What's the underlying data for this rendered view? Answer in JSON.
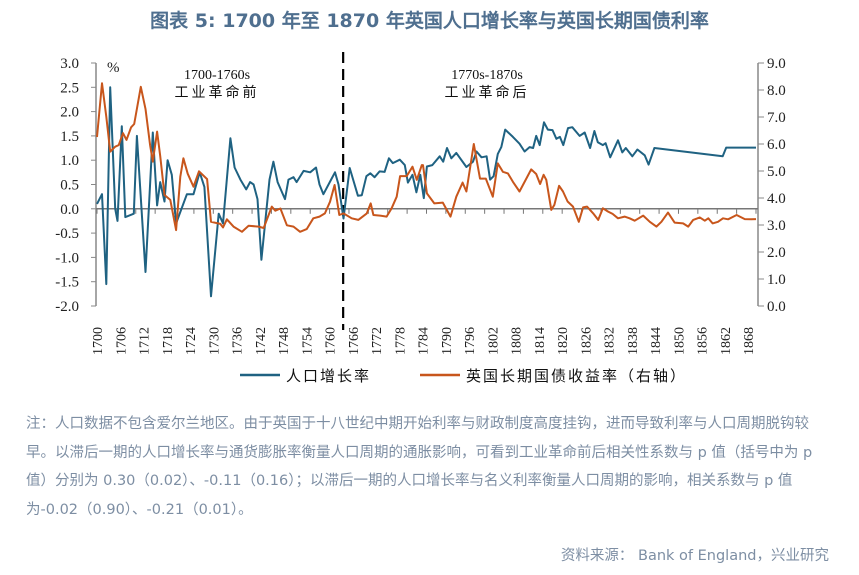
{
  "title": "图表 5:  1700 年至 1870 年英国人口增长率与英国长期国债利率",
  "chart_data": {
    "type": "line",
    "title": "图表 5:  1700 年至 1870 年英国人口增长率与英国长期国债利率",
    "left_unit": "%",
    "xlim": [
      1700,
      1870
    ],
    "ylim_left": [
      -2.0,
      3.0
    ],
    "ylim_right": [
      0.0,
      9.0
    ],
    "left_ticks": [
      "3.0",
      "2.5",
      "2.0",
      "1.5",
      "1.0",
      "0.5",
      "0.0",
      "-0.5",
      "-1.0",
      "-1.5",
      "-2.0"
    ],
    "right_ticks": [
      "9.0",
      "8.0",
      "7.0",
      "6.0",
      "5.0",
      "4.0",
      "3.0",
      "2.0",
      "1.0",
      "0.0"
    ],
    "x_ticks": [
      "1700",
      "1706",
      "1712",
      "1718",
      "1724",
      "1730",
      "1736",
      "1742",
      "1748",
      "1754",
      "1760",
      "1766",
      "1772",
      "1778",
      "1784",
      "1790",
      "1796",
      "1802",
      "1808",
      "1814",
      "1820",
      "1826",
      "1832",
      "1838",
      "1844",
      "1850",
      "1856",
      "1862",
      "1868"
    ],
    "grid": false,
    "legend_position": "bottom",
    "divider_year": 1763.5,
    "annotations": [
      {
        "line1": "1700-1760s",
        "line2": "工业革命前"
      },
      {
        "line1": "1770s-1870s",
        "line2": "工业革命后"
      }
    ],
    "series": [
      {
        "name": "人口增长率",
        "axis": "left",
        "color": "#1f6282",
        "points": [
          [
            1700,
            0.1
          ],
          [
            1701.3,
            0.3
          ],
          [
            1702.4,
            -1.55
          ],
          [
            1703.4,
            2.5
          ],
          [
            1704.7,
            0.0
          ],
          [
            1705.3,
            -0.25
          ],
          [
            1706.4,
            1.7
          ],
          [
            1707.3,
            -0.17
          ],
          [
            1709.5,
            -0.1
          ],
          [
            1710.3,
            1.5
          ],
          [
            1712.5,
            -1.3
          ],
          [
            1714.4,
            1.57
          ],
          [
            1715.5,
            0.07
          ],
          [
            1716.3,
            0.55
          ],
          [
            1717.4,
            0.15
          ],
          [
            1718.2,
            1.0
          ],
          [
            1719.3,
            0.7
          ],
          [
            1720.4,
            -0.3
          ],
          [
            1723.2,
            0.3
          ],
          [
            1724.9,
            0.3
          ],
          [
            1726.5,
            0.75
          ],
          [
            1727.7,
            0.45
          ],
          [
            1729.4,
            -1.8
          ],
          [
            1731.4,
            -0.1
          ],
          [
            1732.5,
            -0.3
          ],
          [
            1734.4,
            1.45
          ],
          [
            1735.5,
            0.85
          ],
          [
            1737,
            0.6
          ],
          [
            1738.5,
            0.4
          ],
          [
            1739.5,
            0.55
          ],
          [
            1740.4,
            0.5
          ],
          [
            1741.4,
            0.2
          ],
          [
            1742.4,
            -1.05
          ],
          [
            1744.5,
            0.6
          ],
          [
            1745.5,
            0.97
          ],
          [
            1746.6,
            0.55
          ],
          [
            1748.5,
            0.2
          ],
          [
            1749.4,
            0.6
          ],
          [
            1750.7,
            0.65
          ],
          [
            1751.5,
            0.55
          ],
          [
            1753.3,
            0.78
          ],
          [
            1755,
            0.75
          ],
          [
            1756.5,
            0.85
          ],
          [
            1757.4,
            0.5
          ],
          [
            1758.4,
            0.3
          ],
          [
            1760.4,
            0.6
          ],
          [
            1761.4,
            0.75
          ],
          [
            1762.3,
            0.5
          ],
          [
            1763.6,
            -0.2
          ],
          [
            1765.2,
            0.84
          ],
          [
            1767.3,
            0.27
          ],
          [
            1768.3,
            0.28
          ],
          [
            1769.5,
            0.67
          ],
          [
            1770.5,
            0.73
          ],
          [
            1771.6,
            0.65
          ],
          [
            1772.9,
            0.77
          ],
          [
            1774.2,
            0.76
          ],
          [
            1775.3,
            1.04
          ],
          [
            1776.3,
            0.94
          ],
          [
            1778.1,
            1.01
          ],
          [
            1779.4,
            0.9
          ],
          [
            1780.2,
            0.54
          ],
          [
            1781.4,
            0.7
          ],
          [
            1782.4,
            0.34
          ],
          [
            1783.4,
            0.7
          ],
          [
            1784.3,
            0.22
          ],
          [
            1785.1,
            0.87
          ],
          [
            1786.5,
            0.9
          ],
          [
            1788.4,
            1.08
          ],
          [
            1789.3,
            0.97
          ],
          [
            1790.3,
            1.25
          ],
          [
            1791.4,
            1.04
          ],
          [
            1792.7,
            1.15
          ],
          [
            1795.3,
            0.86
          ],
          [
            1797,
            0.97
          ],
          [
            1797.9,
            1.18
          ],
          [
            1799.2,
            1.06
          ],
          [
            1800.5,
            1.08
          ],
          [
            1801.4,
            0.6
          ],
          [
            1802.3,
            0.67
          ],
          [
            1803.4,
            1.13
          ],
          [
            1804.3,
            1.27
          ],
          [
            1805.3,
            1.63
          ],
          [
            1807.3,
            1.48
          ],
          [
            1809,
            1.34
          ],
          [
            1810.3,
            1.18
          ],
          [
            1811.6,
            1.27
          ],
          [
            1812.5,
            1.25
          ],
          [
            1813.3,
            1.5
          ],
          [
            1814.2,
            1.31
          ],
          [
            1815.3,
            1.78
          ],
          [
            1816.3,
            1.63
          ],
          [
            1817.5,
            1.62
          ],
          [
            1818.5,
            1.44
          ],
          [
            1819.4,
            1.48
          ],
          [
            1820.3,
            1.31
          ],
          [
            1821.5,
            1.66
          ],
          [
            1822.6,
            1.68
          ],
          [
            1824.5,
            1.5
          ],
          [
            1825.8,
            1.57
          ],
          [
            1827.2,
            1.25
          ],
          [
            1828.3,
            1.6
          ],
          [
            1829.2,
            1.37
          ],
          [
            1830.5,
            1.31
          ],
          [
            1831.2,
            1.35
          ],
          [
            1832.4,
            1.06
          ],
          [
            1834.4,
            1.41
          ],
          [
            1835.5,
            1.16
          ],
          [
            1836.4,
            1.25
          ],
          [
            1838.1,
            1.08
          ],
          [
            1839.4,
            1.22
          ],
          [
            1841.3,
            1.1
          ],
          [
            1842.3,
            0.91
          ],
          [
            1843.8,
            1.25
          ],
          [
            1861.4,
            1.08
          ],
          [
            1862.3,
            1.26
          ],
          [
            1870,
            1.26
          ]
        ]
      },
      {
        "name": "英国长期国债收益率（右轴）",
        "axis": "right",
        "color": "#c8561c",
        "points": [
          [
            1700,
            6.26
          ],
          [
            1701.3,
            8.25
          ],
          [
            1702.4,
            7.01
          ],
          [
            1703.4,
            5.72
          ],
          [
            1704.7,
            5.9
          ],
          [
            1705.6,
            5.96
          ],
          [
            1706.7,
            6.4
          ],
          [
            1707.6,
            6.15
          ],
          [
            1708.8,
            6.62
          ],
          [
            1709.6,
            6.74
          ],
          [
            1711.3,
            8.12
          ],
          [
            1712.5,
            7.3
          ],
          [
            1713.7,
            5.96
          ],
          [
            1714.4,
            5.35
          ],
          [
            1715.5,
            6.46
          ],
          [
            1716.3,
            5.56
          ],
          [
            1717.4,
            4.11
          ],
          [
            1718.9,
            3.93
          ],
          [
            1720.4,
            2.81
          ],
          [
            1721.5,
            4.79
          ],
          [
            1722.3,
            5.47
          ],
          [
            1723.4,
            4.9
          ],
          [
            1724.9,
            4.42
          ],
          [
            1726.3,
            4.99
          ],
          [
            1728.4,
            4.7
          ],
          [
            1729.4,
            3.12
          ],
          [
            1731.8,
            3.04
          ],
          [
            1732.5,
            2.91
          ],
          [
            1733.5,
            3.21
          ],
          [
            1735.2,
            2.94
          ],
          [
            1737.4,
            2.75
          ],
          [
            1739.1,
            2.97
          ],
          [
            1741.7,
            2.94
          ],
          [
            1743,
            2.89
          ],
          [
            1745.1,
            3.68
          ],
          [
            1746,
            3.53
          ],
          [
            1747.3,
            3.61
          ],
          [
            1749,
            2.99
          ],
          [
            1750.7,
            2.94
          ],
          [
            1752.4,
            2.75
          ],
          [
            1754.1,
            2.85
          ],
          [
            1755.8,
            3.25
          ],
          [
            1757.4,
            3.31
          ],
          [
            1758.8,
            3.43
          ],
          [
            1760.1,
            3.86
          ],
          [
            1761.3,
            4.48
          ],
          [
            1762.5,
            3.37
          ],
          [
            1763.6,
            3.43
          ],
          [
            1765.7,
            3.25
          ],
          [
            1767.4,
            3.19
          ],
          [
            1769.6,
            3.43
          ],
          [
            1770.6,
            3.8
          ],
          [
            1771.3,
            3.37
          ],
          [
            1773,
            3.35
          ],
          [
            1774.7,
            3.31
          ],
          [
            1776,
            3.62
          ],
          [
            1777.3,
            4.05
          ],
          [
            1778.2,
            4.81
          ],
          [
            1779.9,
            4.81
          ],
          [
            1781.4,
            5.16
          ],
          [
            1782.5,
            4.67
          ],
          [
            1783.8,
            5.22
          ],
          [
            1784.1,
            5.22
          ],
          [
            1785.1,
            4.17
          ],
          [
            1787,
            3.8
          ],
          [
            1789.2,
            3.83
          ],
          [
            1791.2,
            3.31
          ],
          [
            1792.7,
            4.05
          ],
          [
            1794.3,
            4.57
          ],
          [
            1795.3,
            4.24
          ],
          [
            1797.2,
            6.0
          ],
          [
            1798.8,
            4.72
          ],
          [
            1800.3,
            4.72
          ],
          [
            1802.1,
            4.05
          ],
          [
            1803.4,
            5.28
          ],
          [
            1804.7,
            4.97
          ],
          [
            1806,
            4.91
          ],
          [
            1807.3,
            4.6
          ],
          [
            1809,
            4.24
          ],
          [
            1812,
            5.06
          ],
          [
            1813.3,
            4.89
          ],
          [
            1814.3,
            4.52
          ],
          [
            1815.2,
            4.86
          ],
          [
            1815.9,
            4.67
          ],
          [
            1817.2,
            3.56
          ],
          [
            1818,
            3.75
          ],
          [
            1819.2,
            4.45
          ],
          [
            1820.2,
            4.24
          ],
          [
            1821.4,
            3.87
          ],
          [
            1822.8,
            3.68
          ],
          [
            1824.3,
            3.12
          ],
          [
            1825.4,
            3.65
          ],
          [
            1826.4,
            3.68
          ],
          [
            1828,
            3.43
          ],
          [
            1829.3,
            3.19
          ],
          [
            1830.5,
            3.62
          ],
          [
            1831.8,
            3.5
          ],
          [
            1833,
            3.41
          ],
          [
            1834.4,
            3.25
          ],
          [
            1836.1,
            3.31
          ],
          [
            1837.4,
            3.25
          ],
          [
            1838.7,
            3.16
          ],
          [
            1840.9,
            3.35
          ],
          [
            1842.6,
            3.12
          ],
          [
            1844.3,
            2.94
          ],
          [
            1845.6,
            3.12
          ],
          [
            1847.3,
            3.46
          ],
          [
            1849,
            3.09
          ],
          [
            1851.2,
            3.06
          ],
          [
            1852.5,
            2.94
          ],
          [
            1853.8,
            3.19
          ],
          [
            1855.5,
            3.28
          ],
          [
            1856.8,
            3.16
          ],
          [
            1857.7,
            3.25
          ],
          [
            1858.8,
            3.06
          ],
          [
            1860.2,
            3.12
          ],
          [
            1861.5,
            3.25
          ],
          [
            1862.8,
            3.21
          ],
          [
            1865,
            3.37
          ],
          [
            1867.1,
            3.22
          ],
          [
            1868.8,
            3.21
          ],
          [
            1870,
            3.22
          ]
        ]
      }
    ]
  },
  "note": "注：人口数据不包含爱尔兰地区。由于英国于十八世纪中期开始利率与财政制度高度挂钩，进而导致利率与人口周期脱钩较早。以滞后一期的人口增长率与通货膨胀率衡量人口周期的通胀影响，可看到工业革命前后相关性系数与 p 值（括号中为 p 值）分别为 0.30（0.02）、-0.11（0.16）；以滞后一期的人口增长率与名义利率衡量人口周期的影响，相关系数与 p 值为-0.02（0.90）、-0.21（0.01）。",
  "source": "资料来源：  Bank of England，兴业研究"
}
